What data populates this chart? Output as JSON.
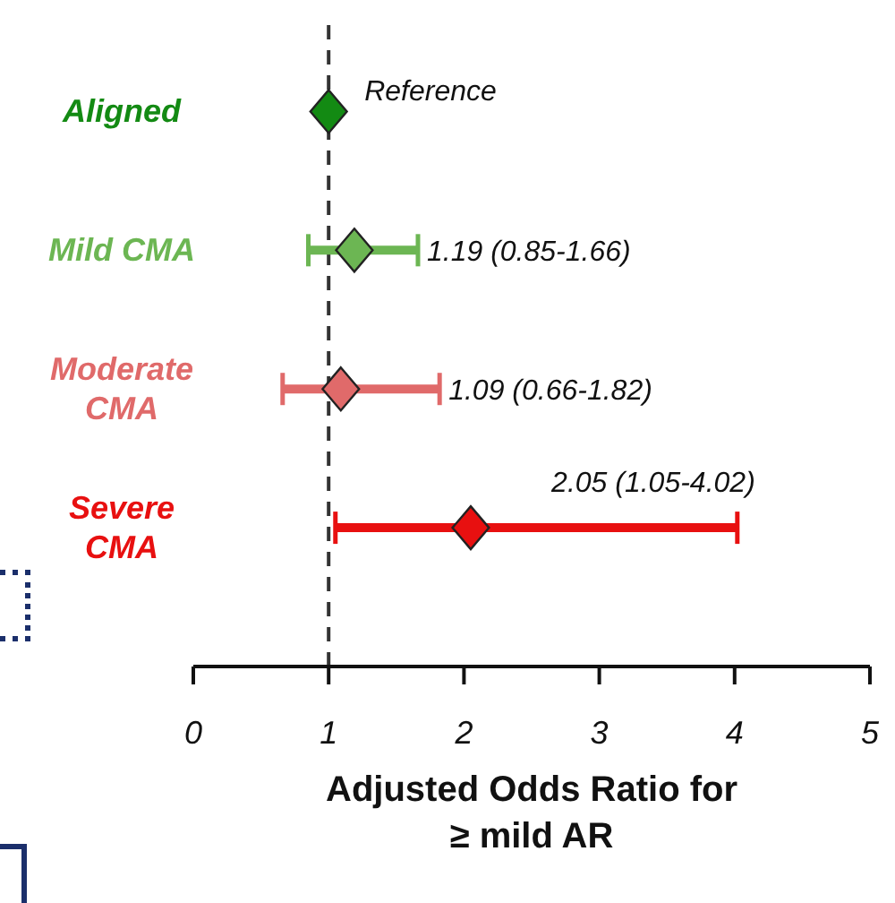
{
  "chart_data": {
    "type": "scatter",
    "orientation": "horizontal",
    "marker": "diamond",
    "legend": false,
    "grid": false,
    "categories": [
      "Aligned",
      "Mild CMA",
      "Moderate CMA",
      "Severe CMA"
    ],
    "values": [
      1,
      1.19,
      1.09,
      2.05
    ],
    "errors": [
      null,
      [
        0.85,
        1.66
      ],
      [
        0.66,
        1.82
      ],
      [
        1.05,
        4.02
      ]
    ],
    "colors": [
      "#138a13",
      "#6cb653",
      "#e06a6a",
      "#e81010"
    ],
    "value_labels": [
      "Reference",
      "1.19 (0.85-1.66)",
      "1.09 (0.66-1.82)",
      "2.05 (1.05-4.02)"
    ],
    "xlim": [
      0,
      5
    ],
    "xticks": [
      0,
      1,
      2,
      3,
      4,
      5
    ],
    "xlabel": "Adjusted Odds Ratio for ≥ mild AR",
    "ref_lines": [
      {
        "axis": "x",
        "value": 1,
        "label": null,
        "color": "#333333",
        "line_style": "dashed"
      }
    ]
  }
}
